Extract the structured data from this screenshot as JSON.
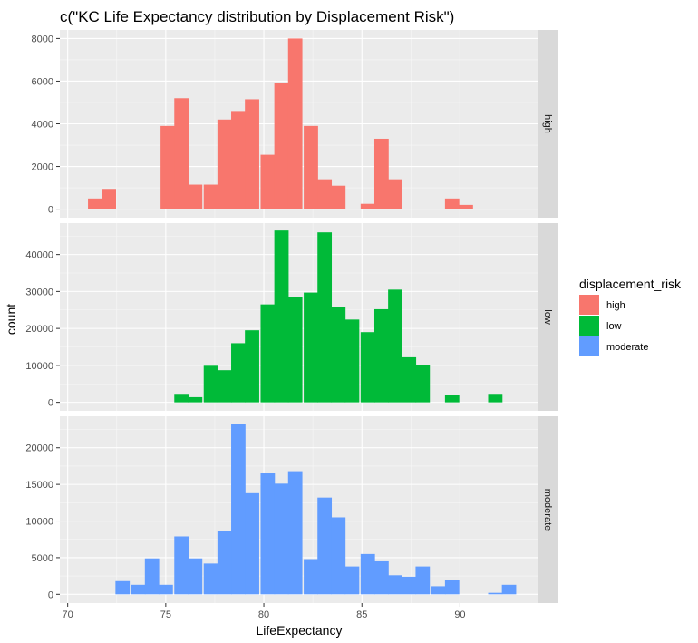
{
  "chart_data": {
    "type": "bar",
    "title": "c(\"KC Life Expectancy distribution by Displacement Risk\")",
    "xlabel": "LifeExpectancy",
    "ylabel": "count",
    "xlim": [
      69.6,
      94.0
    ],
    "x_ticks": [
      70,
      75,
      80,
      85,
      90
    ],
    "bin_width": 0.73,
    "grid": true,
    "legend": {
      "title": "displacement_risk",
      "placement": "right",
      "entries": [
        "high",
        "low",
        "moderate"
      ]
    },
    "panels": [
      {
        "name": "high",
        "color": "#F8766D",
        "ylim": [
          -400,
          8400
        ],
        "y_ticks": [
          0,
          2000,
          4000,
          6000,
          8000
        ],
        "bins": [
          {
            "x": 71.4,
            "count": 500
          },
          {
            "x": 72.1,
            "count": 950
          },
          {
            "x": 75.1,
            "count": 3900
          },
          {
            "x": 75.8,
            "count": 5200
          },
          {
            "x": 76.5,
            "count": 1150
          },
          {
            "x": 77.3,
            "count": 1150
          },
          {
            "x": 78.0,
            "count": 4200
          },
          {
            "x": 78.7,
            "count": 4600
          },
          {
            "x": 79.4,
            "count": 5150
          },
          {
            "x": 80.2,
            "count": 2550
          },
          {
            "x": 80.9,
            "count": 5900
          },
          {
            "x": 81.6,
            "count": 8000
          },
          {
            "x": 82.4,
            "count": 3900
          },
          {
            "x": 83.1,
            "count": 1400
          },
          {
            "x": 83.8,
            "count": 1100
          },
          {
            "x": 85.3,
            "count": 250
          },
          {
            "x": 86.0,
            "count": 3300
          },
          {
            "x": 86.7,
            "count": 1400
          },
          {
            "x": 89.6,
            "count": 500
          },
          {
            "x": 90.3,
            "count": 200
          }
        ]
      },
      {
        "name": "low",
        "color": "#00BA38",
        "ylim": [
          -2300,
          48500
        ],
        "y_ticks": [
          0,
          10000,
          20000,
          30000,
          40000
        ],
        "bins": [
          {
            "x": 75.8,
            "count": 2300
          },
          {
            "x": 76.5,
            "count": 1400
          },
          {
            "x": 77.3,
            "count": 9900
          },
          {
            "x": 78.0,
            "count": 8700
          },
          {
            "x": 78.7,
            "count": 16000
          },
          {
            "x": 79.4,
            "count": 19500
          },
          {
            "x": 80.2,
            "count": 26500
          },
          {
            "x": 80.9,
            "count": 46500
          },
          {
            "x": 81.6,
            "count": 28500
          },
          {
            "x": 82.4,
            "count": 29700
          },
          {
            "x": 83.1,
            "count": 46000
          },
          {
            "x": 83.8,
            "count": 25700
          },
          {
            "x": 84.5,
            "count": 22400
          },
          {
            "x": 85.3,
            "count": 19000
          },
          {
            "x": 86.0,
            "count": 25200
          },
          {
            "x": 86.7,
            "count": 30500
          },
          {
            "x": 87.4,
            "count": 12200
          },
          {
            "x": 88.1,
            "count": 10200
          },
          {
            "x": 89.6,
            "count": 2100
          },
          {
            "x": 91.8,
            "count": 2300
          }
        ]
      },
      {
        "name": "moderate",
        "color": "#619CFF",
        "ylim": [
          -1200,
          24300
        ],
        "y_ticks": [
          0,
          5000,
          10000,
          15000,
          20000
        ],
        "bins": [
          {
            "x": 72.8,
            "count": 1800
          },
          {
            "x": 73.6,
            "count": 1300
          },
          {
            "x": 74.3,
            "count": 4900
          },
          {
            "x": 75.0,
            "count": 1300
          },
          {
            "x": 75.8,
            "count": 7900
          },
          {
            "x": 76.5,
            "count": 4900
          },
          {
            "x": 77.3,
            "count": 4200
          },
          {
            "x": 78.0,
            "count": 8700
          },
          {
            "x": 78.7,
            "count": 23300
          },
          {
            "x": 79.4,
            "count": 13800
          },
          {
            "x": 80.2,
            "count": 16500
          },
          {
            "x": 80.9,
            "count": 15100
          },
          {
            "x": 81.6,
            "count": 16800
          },
          {
            "x": 82.4,
            "count": 4800
          },
          {
            "x": 83.1,
            "count": 13200
          },
          {
            "x": 83.8,
            "count": 10500
          },
          {
            "x": 84.5,
            "count": 3800
          },
          {
            "x": 85.3,
            "count": 5500
          },
          {
            "x": 86.0,
            "count": 4500
          },
          {
            "x": 86.7,
            "count": 2600
          },
          {
            "x": 87.4,
            "count": 2400
          },
          {
            "x": 88.1,
            "count": 3800
          },
          {
            "x": 88.9,
            "count": 1100
          },
          {
            "x": 89.6,
            "count": 1900
          },
          {
            "x": 91.8,
            "count": 200
          },
          {
            "x": 92.5,
            "count": 1300
          }
        ]
      }
    ]
  }
}
